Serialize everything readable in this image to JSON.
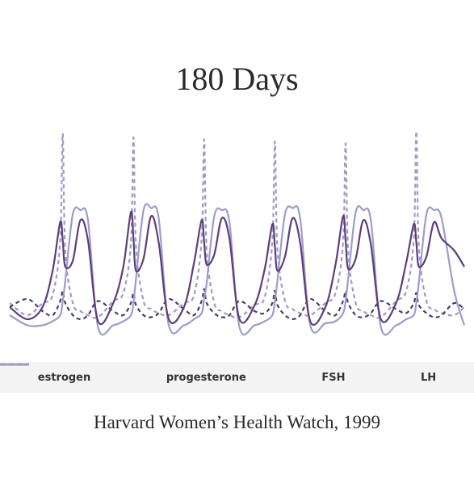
{
  "chart_data": {
    "type": "line",
    "title": "180 Days",
    "caption": "Harvard Women’s Health Watch, 1999",
    "x": [
      0,
      7,
      13,
      17,
      20,
      21,
      22,
      25,
      28,
      31,
      35,
      41,
      45,
      48,
      49,
      50,
      53,
      56,
      59,
      63,
      69,
      73,
      76,
      77,
      78,
      81,
      84,
      87,
      91,
      97,
      101,
      104,
      105,
      106,
      109,
      112,
      115,
      119,
      125,
      129,
      132,
      133,
      134,
      137,
      140,
      143,
      147,
      153,
      157,
      160,
      161,
      162,
      165,
      168,
      171,
      176,
      180
    ],
    "xlim": [
      0,
      180
    ],
    "ylim": [
      0,
      100
    ],
    "series": [
      {
        "name": "estrogen",
        "color": "#5b3f7a",
        "dash": false,
        "values": [
          12,
          6,
          12,
          30,
          54,
          45,
          32,
          35,
          55,
          45,
          5,
          14,
          32,
          59,
          46,
          30,
          36,
          57,
          44,
          6,
          12,
          34,
          55,
          44,
          33,
          38,
          56,
          46,
          6,
          13,
          31,
          53,
          42,
          30,
          37,
          56,
          44,
          5,
          12,
          33,
          57,
          45,
          31,
          36,
          55,
          43,
          6,
          14,
          34,
          53,
          44,
          32,
          37,
          54,
          46,
          40,
          32
        ]
      },
      {
        "name": "progesterone",
        "color": "#9d9bcf",
        "dash": false,
        "values": [
          8,
          3,
          3,
          5,
          8,
          15,
          25,
          58,
          60,
          55,
          2,
          3,
          5,
          8,
          14,
          26,
          60,
          61,
          56,
          3,
          3,
          6,
          9,
          16,
          24,
          57,
          60,
          54,
          2,
          3,
          5,
          8,
          15,
          25,
          58,
          61,
          56,
          3,
          4,
          5,
          9,
          15,
          26,
          59,
          60,
          55,
          2,
          3,
          6,
          8,
          14,
          24,
          58,
          60,
          56,
          20,
          3
        ]
      },
      {
        "name": "FSH",
        "color": "#4f3a6e",
        "dash": true,
        "values": [
          12,
          16,
          10,
          8,
          15,
          20,
          14,
          8,
          6,
          8,
          15,
          10,
          8,
          14,
          19,
          13,
          8,
          7,
          9,
          16,
          11,
          8,
          15,
          21,
          14,
          9,
          7,
          8,
          15,
          10,
          9,
          14,
          20,
          13,
          8,
          6,
          8,
          16,
          10,
          8,
          15,
          20,
          14,
          8,
          7,
          9,
          15,
          11,
          9,
          14,
          19,
          13,
          9,
          7,
          8,
          14,
          11
        ]
      },
      {
        "name": "LH",
        "color": "#9c9cc8",
        "dash": true,
        "values": [
          14,
          8,
          14,
          18,
          45,
          98,
          40,
          14,
          10,
          8,
          7,
          15,
          19,
          44,
          96,
          42,
          15,
          11,
          9,
          8,
          14,
          18,
          46,
          95,
          40,
          14,
          10,
          8,
          7,
          13,
          17,
          45,
          94,
          41,
          15,
          11,
          9,
          8,
          14,
          19,
          44,
          93,
          40,
          14,
          10,
          8,
          7,
          15,
          20,
          46,
          99,
          42,
          15,
          11,
          9,
          8,
          12
        ]
      }
    ]
  }
}
